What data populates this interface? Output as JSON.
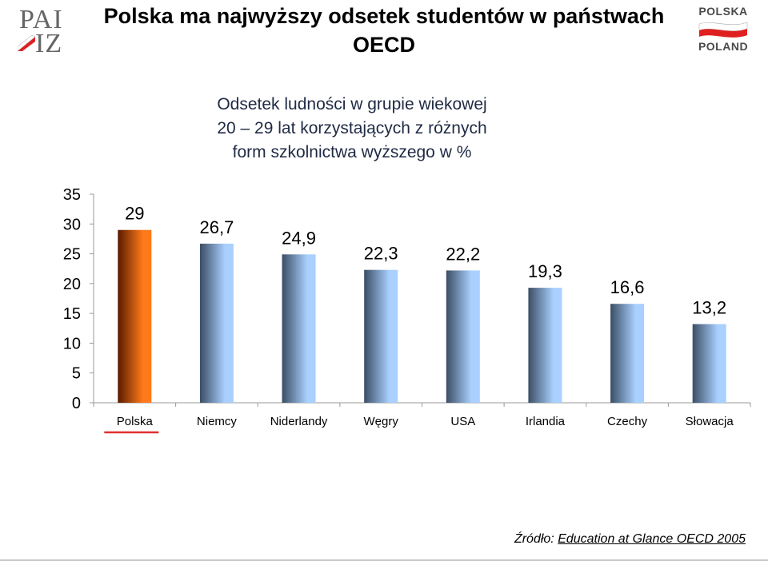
{
  "header": {
    "title": "Polska ma najwyższy odsetek studentów w państwach OECD",
    "logo_left": {
      "line1": "PAI",
      "line2": "IZ"
    },
    "logo_right": {
      "line1": "POLSKA",
      "line2": "POLAND"
    }
  },
  "chart_data": {
    "type": "bar",
    "title": "Odsetek ludności w grupie wiekowej 20 – 29 lat korzystających z różnych form szkolnictwa wyższego w %",
    "title_lines": [
      "Odsetek ludności w grupie wiekowej",
      "20 – 29 lat korzystających z różnych",
      "form szkolnictwa wyższego w %"
    ],
    "categories": [
      "Polska",
      "Niemcy",
      "Niderlandy",
      "Węgry",
      "USA",
      "Irlandia",
      "Czechy",
      "Słowacja"
    ],
    "values": [
      29,
      26.7,
      24.9,
      22.3,
      22.2,
      19.3,
      16.6,
      13.2
    ],
    "data_labels": [
      "29",
      "26,7",
      "24,9",
      "22,3",
      "22,2",
      "19,3",
      "16,6",
      "13,2"
    ],
    "ylim": [
      0,
      35
    ],
    "yticks": [
      0,
      5,
      10,
      15,
      20,
      25,
      30,
      35
    ],
    "xlabel": "",
    "ylabel": "",
    "highlight_category": "Polska",
    "colors": {
      "highlight_light": "#ff7a1a",
      "highlight_dark": "#5a1a00",
      "bar_light": "#a9d0ff",
      "bar_dark": "#3b4d64",
      "highlight_underline": "#e03030"
    }
  },
  "source": {
    "prefix": "Źródło:",
    "text": "Education at Glance OECD 2005"
  }
}
